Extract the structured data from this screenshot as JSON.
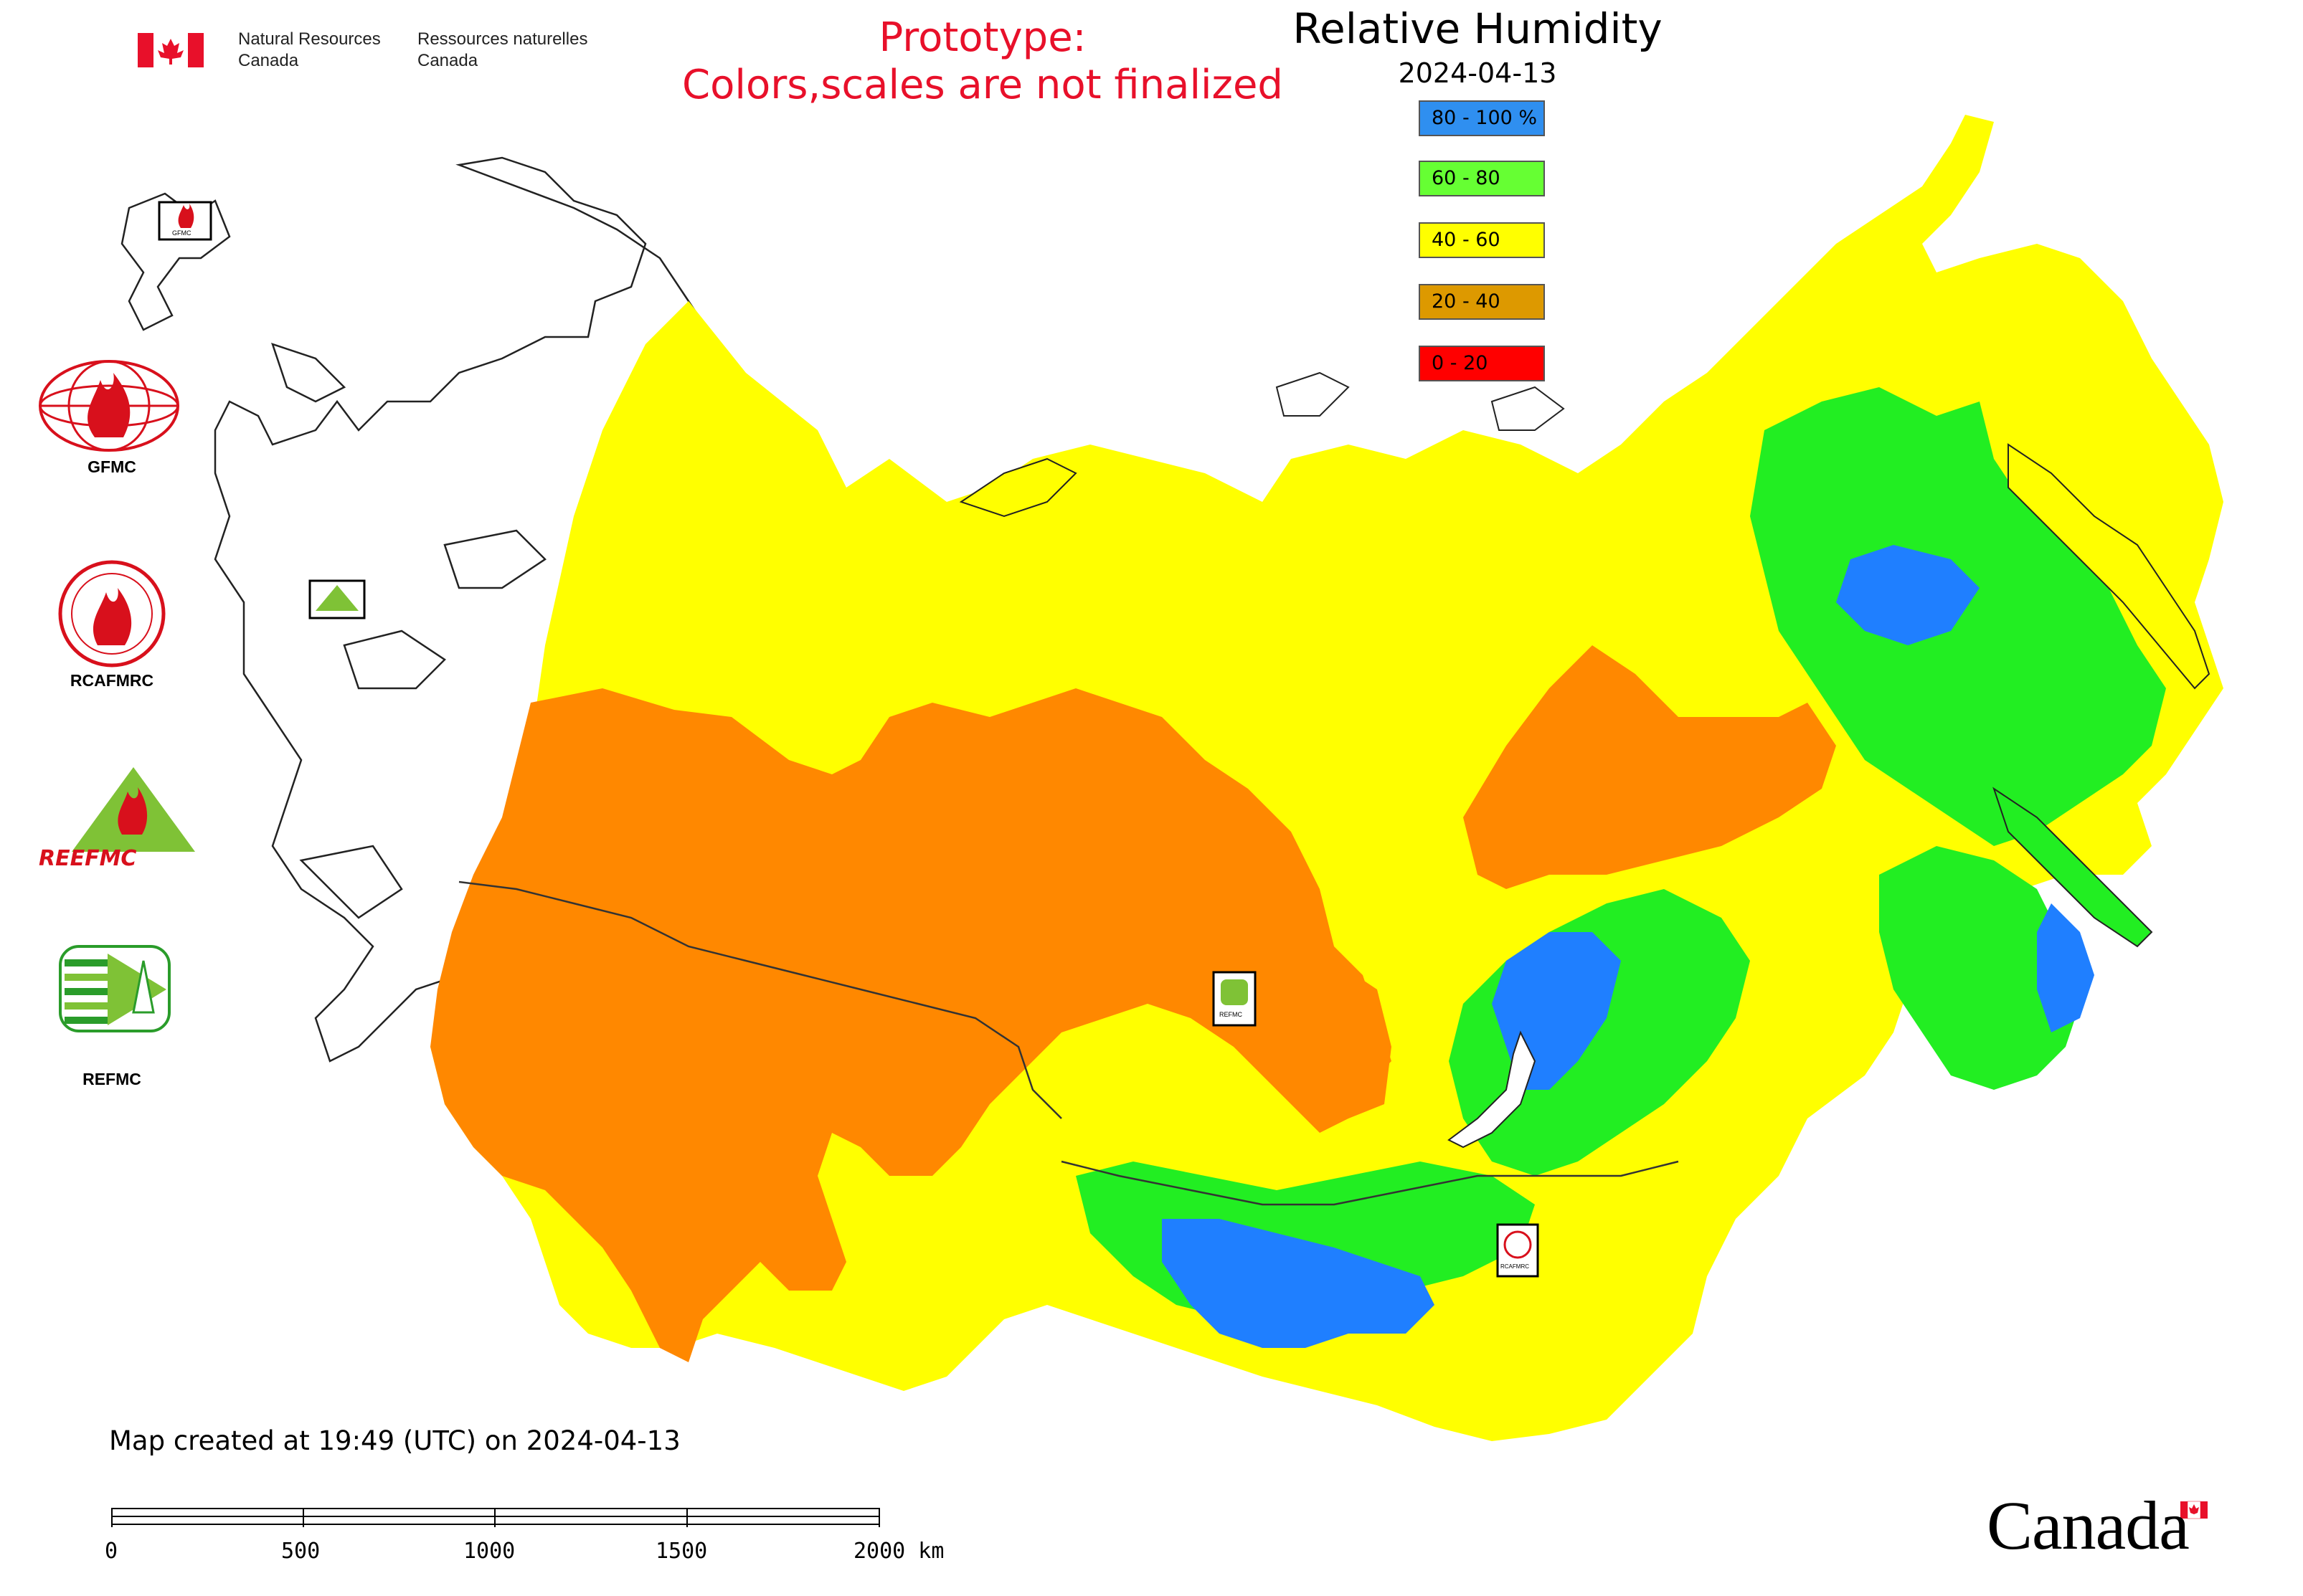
{
  "header": {
    "nrcan_en_line1": "Natural Resources",
    "nrcan_en_line2": "Canada",
    "nrcan_fr_line1": "Ressources naturelles",
    "nrcan_fr_line2": "Canada",
    "prototype_line1": "Prototype:",
    "prototype_line2": "Colors,scales are not finalized"
  },
  "map": {
    "title": "Relative Humidity",
    "date": "2024-04-13",
    "legend": [
      {
        "label": "80 - 100 %",
        "color": "#2f8ff0"
      },
      {
        "label": "60 - 80",
        "color": "#66ff33"
      },
      {
        "label": "40 - 60",
        "color": "#ffff00"
      },
      {
        "label": "20 - 40",
        "color": "#dd9900"
      },
      {
        "label": "0 - 20",
        "color": "#ff0000"
      }
    ],
    "data_colors": {
      "very_humid": "#1f7fff",
      "humid": "#22ee22",
      "moderate": "#ffff00",
      "dry": "#ff8800",
      "very_dry": "#ff2200"
    }
  },
  "organizations": {
    "gfmc": "GFMC",
    "rcafmrc": "RCAFMRC",
    "reefmc_logo_text": "REEFMC",
    "refmc": "REFMC",
    "small_gfmc": "GFMC",
    "small_refmc": "REFMC",
    "small_rcafmrc": "RCAFMRC"
  },
  "footer": {
    "created": "Map created at 19:49 (UTC) on 2024-04-13",
    "scale_labels": [
      "0",
      "500",
      "1000",
      "1500",
      "2000 km"
    ],
    "wordmark": "Canada"
  }
}
